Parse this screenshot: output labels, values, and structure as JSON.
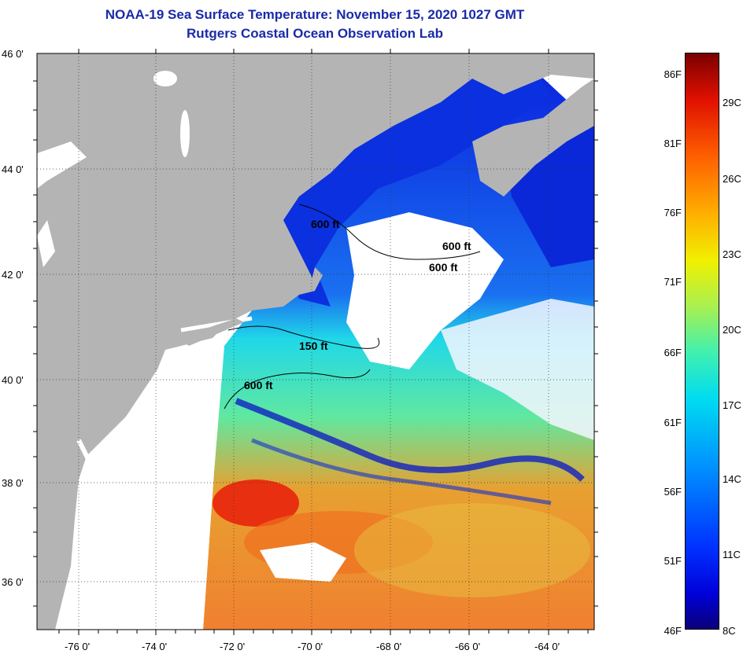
{
  "title": {
    "line1": "NOAA-19 Sea Surface Temperature:  November 15, 2020 1027 GMT",
    "line2": "Rutgers Coastal Ocean Observation Lab"
  },
  "map": {
    "lat_labels": [
      "46 0'",
      "44 0'",
      "42 0'",
      "40 0'",
      "38 0'",
      "36 0'"
    ],
    "lon_labels": [
      "-76 0'",
      "-74 0'",
      "-72 0'",
      "-70 0'",
      "-68 0'",
      "-66 0'",
      "-64 0'"
    ],
    "contour_labels": [
      "600 ft",
      "600 ft",
      "600 ft",
      "150 ft",
      "600 ft"
    ],
    "colors": {
      "land": "#b4b4b4",
      "cloud": "#ffffff",
      "cold": "#0018d8",
      "cyan": "#20d8e8",
      "warm": "#f06010"
    }
  },
  "colorbar": {
    "fahrenheit": [
      "86F",
      "81F",
      "76F",
      "71F",
      "66F",
      "61F",
      "56F",
      "51F",
      "46F"
    ],
    "celsius": [
      "29C",
      "26C",
      "23C",
      "20C",
      "17C",
      "14C",
      "11C",
      "8C"
    ]
  }
}
